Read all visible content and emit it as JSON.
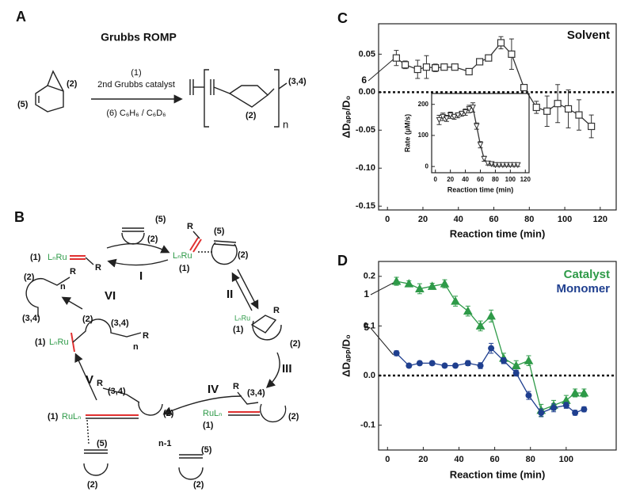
{
  "panel_a": {
    "label": "A",
    "title": "Grubbs ROMP",
    "catalyst_ref": "(1)",
    "catalyst": "2nd Grubbs catalyst",
    "solvent": "(6) C₆H₆ / C₆D₆",
    "monomer_ref": "(5)",
    "monomer_carbon": "(2)",
    "product_end": "(3,4)",
    "product_carbon": "(2)",
    "repeat": "n"
  },
  "panel_b": {
    "texts": [
      "B",
      "(5)",
      "(2)",
      "(1)",
      "LₙRu",
      "R",
      "I",
      "R",
      "(5)",
      "LₙRu",
      "(1)",
      "(2)",
      "II",
      "R",
      "LₙRu",
      "(1)",
      "(2)",
      "III",
      "R",
      "(3,4)",
      "RuLₙ",
      "(1)",
      "(2)",
      "IV",
      "n-1",
      "(5)",
      "(2)",
      "R",
      "(3,4)",
      "(2)",
      "(1)",
      "RuLₙ",
      "(5)",
      "(2)",
      "V",
      "(2)",
      "(3,4)",
      "(1)",
      "LₙRu",
      "n",
      "R",
      "VI",
      "(2)",
      "R",
      "n",
      "(3,4)"
    ]
  },
  "chart_data": [
    {
      "type": "line",
      "panel": "C",
      "ylabel": "ΔDₐₚₚ/D₀",
      "xlabel": "Reaction time (min)",
      "xlim": [
        -5,
        129
      ],
      "xticks": [
        0,
        20,
        40,
        60,
        80,
        100,
        120
      ],
      "ylim": [
        -0.155,
        0.09
      ],
      "yticks": [
        0.05,
        {
          "value": 0,
          "label": "0.00"
        },
        -0.05,
        {
          "value": -0.1,
          "label": "-0.10"
        },
        -0.15
      ],
      "zero_line": true,
      "series": [
        {
          "name": "Solvent",
          "color": "#333333",
          "marker": "open-square",
          "x": [
            5,
            10,
            17,
            22,
            27,
            32,
            38,
            46,
            52,
            57,
            64,
            70,
            77,
            84,
            90,
            96,
            102,
            108,
            115
          ],
          "values": [
            0.045,
            0.036,
            0.03,
            0.033,
            0.032,
            0.033,
            0.033,
            0.027,
            0.04,
            0.045,
            0.065,
            0.05,
            0.006,
            -0.02,
            -0.025,
            -0.015,
            -0.022,
            -0.03,
            -0.045
          ],
          "errors": [
            0.01,
            0.005,
            0.012,
            0.015,
            0.005,
            0.004,
            0.003,
            0.003,
            0.004,
            0.004,
            0.008,
            0.02,
            0.003,
            0.008,
            0.02,
            0.025,
            0.025,
            0.02,
            0.015
          ]
        }
      ],
      "annotations": [
        "6"
      ]
    },
    {
      "type": "line",
      "ylabel": "Rate (µM/s)",
      "xlabel": "Reaction time (min)",
      "xlim": [
        -5,
        125
      ],
      "xticks": [
        0,
        20,
        40,
        60,
        80,
        100,
        120
      ],
      "ylim": [
        -20,
        235
      ],
      "yticks": [
        0,
        100,
        200
      ],
      "series": [
        {
          "color": "#333333",
          "marker": "open-triangle-down",
          "x": [
            5,
            10,
            15,
            20,
            25,
            30,
            35,
            40,
            45,
            50,
            55,
            60,
            65,
            70,
            75,
            80,
            85,
            90,
            95,
            100,
            105,
            110
          ],
          "values": [
            150,
            160,
            155,
            165,
            160,
            165,
            170,
            175,
            185,
            190,
            130,
            70,
            25,
            10,
            8,
            5,
            5,
            5,
            5,
            5,
            5,
            5
          ],
          "errors": [
            15,
            12,
            10,
            10,
            8,
            8,
            8,
            10,
            12,
            15,
            10,
            10,
            8,
            5,
            5,
            5,
            5,
            5,
            5,
            5,
            5,
            5
          ]
        }
      ]
    },
    {
      "type": "line",
      "panel": "D",
      "ylabel": "ΔDₐₚₚ/D₀",
      "xlabel": "Reaction time (min)",
      "xlim": [
        -5,
        128
      ],
      "xticks": [
        0,
        20,
        40,
        60,
        80,
        100
      ],
      "ylim": [
        -0.15,
        0.23
      ],
      "yticks": [
        -0.1,
        {
          "value": 0,
          "label": "0.0"
        },
        0.1,
        0.2
      ],
      "zero_line": true,
      "series": [
        {
          "name": "Catalyst",
          "color": "#2e9a48",
          "marker": "triangle",
          "x": [
            5,
            12,
            18,
            25,
            32,
            38,
            45,
            52,
            58,
            65,
            72,
            79,
            86,
            93,
            100,
            105,
            110
          ],
          "values": [
            0.19,
            0.185,
            0.175,
            0.18,
            0.185,
            0.15,
            0.13,
            0.1,
            0.12,
            0.035,
            0.02,
            0.03,
            -0.07,
            -0.06,
            -0.05,
            -0.035,
            -0.035
          ],
          "errors": [
            0.008,
            0.006,
            0.01,
            0.006,
            0.008,
            0.01,
            0.01,
            0.01,
            0.012,
            0.01,
            0.01,
            0.01,
            0.012,
            0.01,
            0.01,
            0.008,
            0.008
          ]
        },
        {
          "name": "Monomer",
          "color": "#1f3f8f",
          "marker": "circle",
          "x": [
            5,
            12,
            18,
            25,
            32,
            38,
            45,
            52,
            58,
            65,
            72,
            79,
            86,
            93,
            100,
            105,
            110
          ],
          "values": [
            0.045,
            0.02,
            0.025,
            0.025,
            0.02,
            0.02,
            0.025,
            0.02,
            0.055,
            0.03,
            0.005,
            -0.04,
            -0.075,
            -0.065,
            -0.06,
            -0.075,
            -0.068
          ],
          "errors": [
            0.005,
            0.004,
            0.004,
            0.004,
            0.004,
            0.004,
            0.005,
            0.006,
            0.01,
            0.006,
            0.006,
            0.008,
            0.008,
            0.008,
            0.006,
            0.005,
            0.005
          ]
        }
      ],
      "annotations": [
        "1",
        "5"
      ]
    }
  ]
}
